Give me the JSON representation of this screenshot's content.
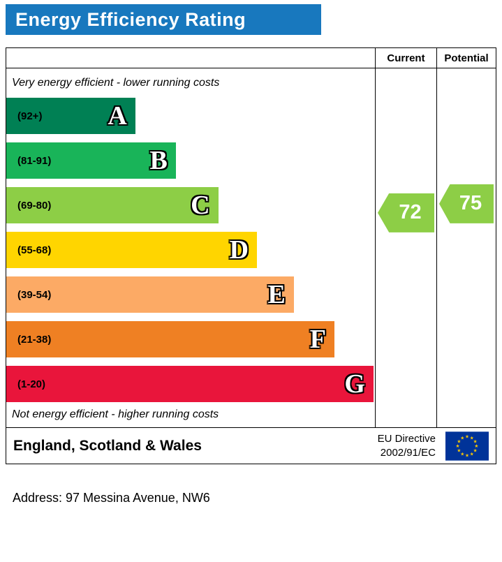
{
  "title": "Energy Efficiency Rating",
  "header_color": "#1878be",
  "columns": {
    "current": "Current",
    "potential": "Potential"
  },
  "top_note": "Very energy efficient - lower running costs",
  "bottom_note": "Not energy efficient - higher running costs",
  "bands": [
    {
      "letter": "A",
      "range": "(92+)",
      "color": "#008054",
      "width_pct": 35
    },
    {
      "letter": "B",
      "range": "(81-91)",
      "color": "#19b459",
      "width_pct": 46
    },
    {
      "letter": "C",
      "range": "(69-80)",
      "color": "#8dce46",
      "width_pct": 57.5
    },
    {
      "letter": "D",
      "range": "(55-68)",
      "color": "#ffd500",
      "width_pct": 68
    },
    {
      "letter": "E",
      "range": "(39-54)",
      "color": "#fcaa65",
      "width_pct": 78
    },
    {
      "letter": "F",
      "range": "(21-38)",
      "color": "#ef8023",
      "width_pct": 89
    },
    {
      "letter": "G",
      "range": "(1-20)",
      "color": "#e9153b",
      "width_pct": 99.6
    }
  ],
  "current": {
    "value": "72",
    "color": "#8dce46"
  },
  "potential": {
    "value": "75",
    "color": "#8dce46"
  },
  "footer": {
    "region": "England, Scotland & Wales",
    "directive_line1": "EU Directive",
    "directive_line2": "2002/91/EC"
  },
  "address_line": "Address: 97 Messina Avenue, NW6",
  "chart_data": {
    "type": "bar",
    "title": "Energy Efficiency Rating",
    "categories": [
      "A",
      "B",
      "C",
      "D",
      "E",
      "F",
      "G"
    ],
    "band_ranges": [
      "92+",
      "81-91",
      "69-80",
      "55-68",
      "39-54",
      "21-38",
      "1-20"
    ],
    "band_colors": [
      "#008054",
      "#19b459",
      "#8dce46",
      "#ffd500",
      "#fcaa65",
      "#ef8023",
      "#e9153b"
    ],
    "band_bar_length_pct": [
      35,
      46,
      57.5,
      68,
      78,
      89,
      99.6
    ],
    "series": [
      {
        "name": "Current",
        "values": [
          72
        ],
        "band": "C"
      },
      {
        "name": "Potential",
        "values": [
          75
        ],
        "band": "C"
      }
    ],
    "notes": [
      "Very energy efficient - lower running costs",
      "Not energy efficient - higher running costs"
    ],
    "region_label": "England, Scotland & Wales",
    "directive_label": "EU Directive 2002/91/EC",
    "legend_position": "column-headers-top-right"
  }
}
